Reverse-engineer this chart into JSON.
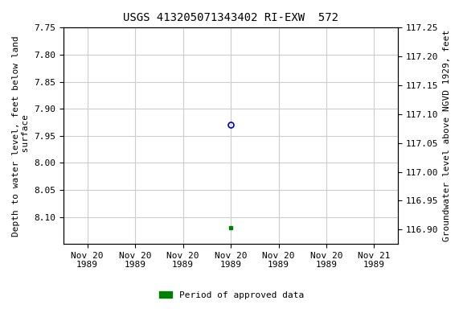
{
  "title": "USGS 413205071343402 RI-EXW  572",
  "ylabel_left": "Depth to water level, feet below land\n surface",
  "ylabel_right": "Groundwater level above NGVD 1929, feet",
  "ylim_left": [
    7.75,
    8.15
  ],
  "ylim_right": [
    117.25,
    116.875
  ],
  "yticks_left": [
    7.75,
    7.8,
    7.85,
    7.9,
    7.95,
    8.0,
    8.05,
    8.1
  ],
  "yticks_right": [
    117.25,
    117.2,
    117.15,
    117.1,
    117.05,
    117.0,
    116.95,
    116.9
  ],
  "data_point_open": {
    "date": "1989-11-20",
    "depth": 7.93
  },
  "data_point_green": {
    "date": "1989-11-20",
    "depth": 8.12
  },
  "xtick_labels": [
    "Nov 20\n1989",
    "Nov 20\n1989",
    "Nov 20\n1989",
    "Nov 20\n1989",
    "Nov 20\n1989",
    "Nov 20\n1989",
    "Nov 21\n1989"
  ],
  "bg_color": "#ffffff",
  "grid_color": "#cccccc",
  "open_circle_color": "#0000bb",
  "green_square_color": "#008000",
  "legend_label": "Period of approved data",
  "legend_color": "#008000",
  "font_family": "monospace",
  "title_fontsize": 10,
  "axis_fontsize": 8,
  "tick_fontsize": 8
}
